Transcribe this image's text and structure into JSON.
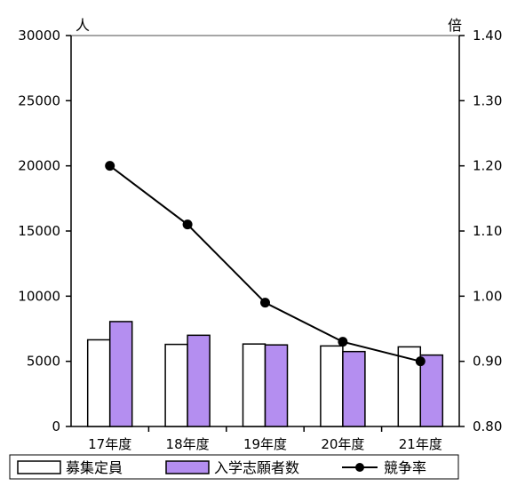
{
  "chart_data": {
    "type": "bar",
    "categories": [
      "17年度",
      "18年度",
      "19年度",
      "20年度",
      "21年度"
    ],
    "series": [
      {
        "name": "募集定員",
        "type": "bar",
        "axis": "left",
        "color": "#ffffff",
        "values": [
          6650,
          6300,
          6330,
          6180,
          6110
        ]
      },
      {
        "name": "入学志願者数",
        "type": "bar",
        "axis": "left",
        "color": "#b48ef0",
        "values": [
          8050,
          7000,
          6260,
          5750,
          5480
        ]
      },
      {
        "name": "競争率",
        "type": "line",
        "axis": "right",
        "color": "#000000",
        "values": [
          1.2,
          1.11,
          0.99,
          0.93,
          0.9
        ]
      }
    ],
    "y_left": {
      "unit": "人",
      "ylim": [
        0,
        30000
      ],
      "ticks": [
        "0",
        "5000",
        "10000",
        "15000",
        "20000",
        "25000",
        "30000"
      ]
    },
    "y_right": {
      "unit": "倍",
      "ylim": [
        0.8,
        1.4
      ],
      "ticks": [
        "0.80",
        "0.90",
        "1.00",
        "1.10",
        "1.20",
        "1.30",
        "1.40"
      ]
    },
    "grid": false,
    "legend": "bottom"
  }
}
